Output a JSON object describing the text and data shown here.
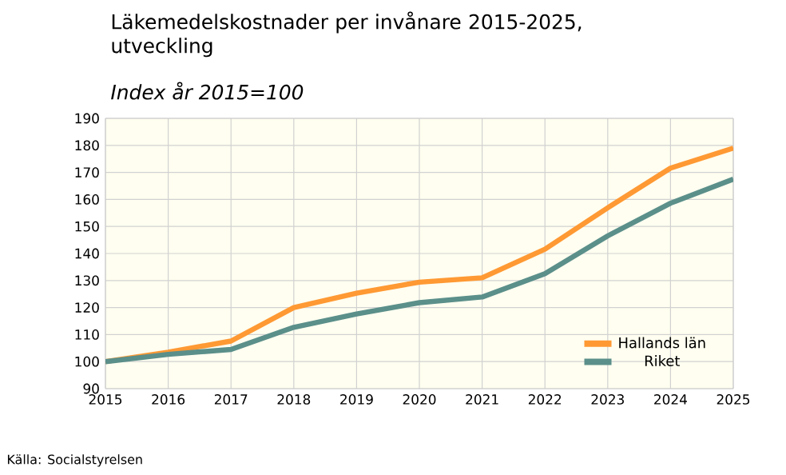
{
  "chart_data": {
    "type": "line",
    "title": "Läkemedelskostnader per invånare 2015-2025, utveckling",
    "subtitle": "Index år 2015=100",
    "x": [
      2015,
      2016,
      2017,
      2018,
      2019,
      2020,
      2021,
      2022,
      2023,
      2024,
      2025
    ],
    "series": [
      {
        "name": "Hallands län",
        "color": "#ff9933",
        "values": [
          100,
          103.5,
          107.6,
          120,
          125.3,
          129.4,
          131,
          141.6,
          156.9,
          171.6,
          179
        ]
      },
      {
        "name": "Riket",
        "color": "#5b8f8a",
        "values": [
          100,
          102.7,
          104.5,
          112.7,
          117.6,
          121.8,
          123.9,
          132.5,
          146.5,
          158.6,
          167.5
        ]
      }
    ],
    "xlim": [
      2015,
      2025
    ],
    "xticks": [
      2015,
      2016,
      2017,
      2018,
      2019,
      2020,
      2021,
      2022,
      2023,
      2024,
      2025
    ],
    "ylim": [
      90,
      190
    ],
    "yticks": [
      90,
      100,
      110,
      120,
      130,
      140,
      150,
      160,
      170,
      180,
      190
    ],
    "grid": true,
    "legend": "bottom right",
    "marker": "none",
    "line_style": "solid",
    "annotations": [
      "Källa: Socialstyrelsen"
    ]
  }
}
